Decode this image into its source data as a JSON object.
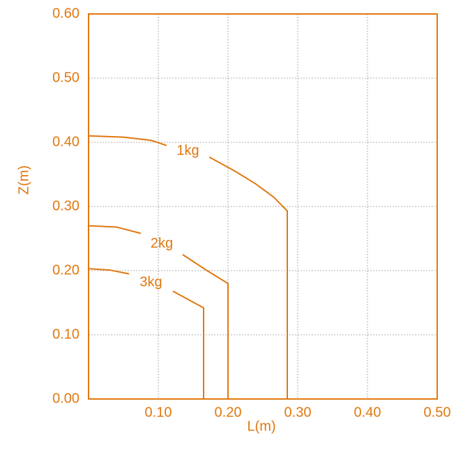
{
  "chart_data": {
    "type": "line",
    "x_label": "L(m)",
    "y_label": "Z(m)",
    "xlim": [
      0,
      0.5
    ],
    "ylim": [
      0,
      0.6
    ],
    "xticks": [
      {
        "value": 0.1,
        "label": "0.10"
      },
      {
        "value": 0.2,
        "label": "0.20"
      },
      {
        "value": 0.3,
        "label": "0.30"
      },
      {
        "value": 0.4,
        "label": "0.40"
      },
      {
        "value": 0.5,
        "label": "0.50"
      }
    ],
    "yticks": [
      {
        "value": 0,
        "label": "0.00"
      },
      {
        "value": 0.1,
        "label": "0.10"
      },
      {
        "value": 0.2,
        "label": "0.20"
      },
      {
        "value": 0.3,
        "label": "0.30"
      },
      {
        "value": 0.4,
        "label": "0.40"
      },
      {
        "value": 0.5,
        "label": "0.50"
      },
      {
        "value": 0.6,
        "label": "0.60"
      }
    ],
    "grid": true,
    "color": "#e0780f",
    "series": [
      {
        "name": "1kg",
        "color": "#e0780f",
        "x": [
          0,
          0.05,
          0.09,
          0.112,
          null,
          0.173,
          0.21,
          0.24,
          0.265,
          0.285,
          0.285
        ],
        "values": [
          0.41,
          0.408,
          0.403,
          0.395,
          null,
          0.377,
          0.355,
          0.335,
          0.315,
          0.293,
          0
        ]
      },
      {
        "name": "2kg",
        "color": "#e0780f",
        "x": [
          0,
          0.04,
          0.075,
          null,
          0.135,
          0.17,
          0.2,
          0.2
        ],
        "values": [
          0.27,
          0.268,
          0.258,
          null,
          0.225,
          0.2,
          0.18,
          0
        ]
      },
      {
        "name": "3kg",
        "color": "#e0780f",
        "x": [
          0,
          0.03,
          0.058,
          null,
          0.121,
          0.165,
          0.165
        ],
        "values": [
          0.203,
          0.201,
          0.195,
          null,
          0.168,
          0.142,
          0
        ]
      }
    ]
  }
}
